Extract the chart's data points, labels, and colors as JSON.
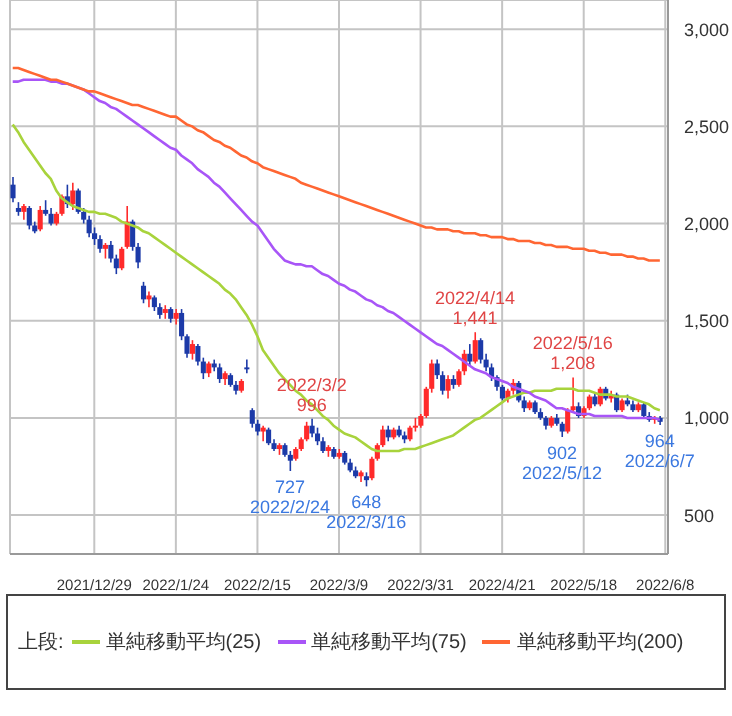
{
  "chart_data": {
    "type": "candlestick",
    "categories": [
      null,
      null,
      null,
      null,
      null,
      null,
      null,
      null,
      null,
      null,
      null,
      null,
      null,
      null,
      null,
      "2021/12/29",
      null,
      null,
      null,
      null,
      null,
      null,
      null,
      null,
      null,
      null,
      null,
      null,
      null,
      null,
      "2022/1/24",
      null,
      null,
      null,
      null,
      null,
      null,
      null,
      null,
      null,
      null,
      null,
      null,
      null,
      null,
      "2022/2/15",
      null,
      null,
      null,
      null,
      null,
      null,
      null,
      null,
      null,
      null,
      null,
      null,
      null,
      null,
      "2022/3/9",
      null,
      null,
      null,
      null,
      null,
      null,
      null,
      null,
      null,
      null,
      null,
      null,
      null,
      null,
      "2022/3/31",
      null,
      null,
      null,
      null,
      null,
      null,
      null,
      null,
      null,
      null,
      null,
      null,
      null,
      null,
      "2022/4/21",
      null,
      null,
      null,
      null,
      null,
      null,
      null,
      null,
      null,
      null,
      null,
      null,
      null,
      null,
      "2022/5/18",
      null,
      null,
      null,
      null,
      null,
      null,
      null,
      null,
      null,
      null,
      null,
      null,
      null,
      null,
      "2022/6/8"
    ],
    "ohlc": [
      [
        2200,
        2240,
        2110,
        2130
      ],
      [
        2080,
        2110,
        2040,
        2060
      ],
      [
        2060,
        2100,
        2020,
        2090
      ],
      [
        2080,
        2090,
        1970,
        1990
      ],
      [
        1990,
        2010,
        1950,
        1960
      ],
      [
        1970,
        2090,
        1960,
        2070
      ],
      [
        2070,
        2120,
        2040,
        2050
      ],
      [
        2050,
        2080,
        1990,
        2000
      ],
      [
        2000,
        2060,
        1990,
        2050
      ],
      [
        2050,
        2150,
        2040,
        2140
      ],
      [
        2140,
        2200,
        2080,
        2100
      ],
      [
        2100,
        2210,
        2070,
        2170
      ],
      [
        2170,
        2180,
        2050,
        2060
      ],
      [
        2060,
        2080,
        2000,
        2020
      ],
      [
        2020,
        2040,
        1930,
        1950
      ],
      [
        1950,
        1980,
        1890,
        1920
      ],
      [
        1920,
        1940,
        1850,
        1870
      ],
      [
        1870,
        1900,
        1820,
        1890
      ],
      [
        1890,
        1910,
        1800,
        1820
      ],
      [
        1820,
        1840,
        1740,
        1770
      ],
      [
        1770,
        1880,
        1760,
        1870
      ],
      [
        1880,
        2090,
        1870,
        2010
      ],
      [
        2010,
        2020,
        1860,
        1880
      ],
      [
        1880,
        1900,
        1770,
        1800
      ],
      [
        1680,
        1700,
        1590,
        1610
      ],
      [
        1610,
        1650,
        1570,
        1630
      ],
      [
        1620,
        1630,
        1550,
        1570
      ],
      [
        1570,
        1590,
        1510,
        1530
      ],
      [
        1540,
        1580,
        1510,
        1560
      ],
      [
        1560,
        1570,
        1490,
        1510
      ],
      [
        1510,
        1560,
        1480,
        1540
      ],
      [
        1540,
        1560,
        1400,
        1420
      ],
      [
        1420,
        1430,
        1310,
        1330
      ],
      [
        1330,
        1400,
        1300,
        1380
      ],
      [
        1370,
        1380,
        1270,
        1290
      ],
      [
        1290,
        1310,
        1200,
        1230
      ],
      [
        1230,
        1290,
        1210,
        1280
      ],
      [
        1280,
        1300,
        1240,
        1260
      ],
      [
        1260,
        1280,
        1180,
        1200
      ],
      [
        1200,
        1240,
        1170,
        1230
      ],
      [
        1220,
        1230,
        1160,
        1170
      ],
      [
        1170,
        1190,
        1120,
        1140
      ],
      [
        1140,
        1200,
        1130,
        1190
      ],
      [
        1260,
        1300,
        1230,
        1250
      ],
      [
        1040,
        1050,
        950,
        970
      ],
      [
        970,
        990,
        910,
        930
      ],
      [
        930,
        960,
        880,
        950
      ],
      [
        940,
        950,
        860,
        870
      ],
      [
        870,
        890,
        830,
        840
      ],
      [
        840,
        870,
        810,
        860
      ],
      [
        860,
        870,
        800,
        810
      ],
      [
        810,
        830,
        727,
        780
      ],
      [
        790,
        850,
        780,
        840
      ],
      [
        840,
        900,
        830,
        890
      ],
      [
        890,
        980,
        880,
        960
      ],
      [
        960,
        996,
        900,
        920
      ],
      [
        920,
        950,
        860,
        880
      ],
      [
        880,
        900,
        820,
        830
      ],
      [
        830,
        860,
        800,
        850
      ],
      [
        840,
        850,
        790,
        800
      ],
      [
        800,
        840,
        790,
        820
      ],
      [
        820,
        830,
        760,
        770
      ],
      [
        770,
        790,
        720,
        730
      ],
      [
        730,
        750,
        690,
        700
      ],
      [
        700,
        730,
        670,
        720
      ],
      [
        700,
        720,
        648,
        680
      ],
      [
        690,
        800,
        680,
        790
      ],
      [
        790,
        870,
        780,
        860
      ],
      [
        860,
        960,
        850,
        940
      ],
      [
        940,
        960,
        880,
        900
      ],
      [
        900,
        950,
        890,
        940
      ],
      [
        940,
        960,
        900,
        910
      ],
      [
        910,
        930,
        870,
        890
      ],
      [
        890,
        960,
        880,
        950
      ],
      [
        950,
        1000,
        930,
        960
      ],
      [
        960,
        1020,
        950,
        1010
      ],
      [
        1010,
        1160,
        1000,
        1150
      ],
      [
        1150,
        1300,
        1130,
        1280
      ],
      [
        1280,
        1300,
        1200,
        1220
      ],
      [
        1220,
        1240,
        1120,
        1140
      ],
      [
        1140,
        1220,
        1100,
        1200
      ],
      [
        1200,
        1220,
        1150,
        1170
      ],
      [
        1170,
        1250,
        1160,
        1240
      ],
      [
        1240,
        1350,
        1220,
        1330
      ],
      [
        1330,
        1380,
        1270,
        1290
      ],
      [
        1290,
        1441,
        1280,
        1400
      ],
      [
        1400,
        1410,
        1280,
        1300
      ],
      [
        1300,
        1330,
        1240,
        1260
      ],
      [
        1260,
        1280,
        1190,
        1210
      ],
      [
        1210,
        1220,
        1140,
        1160
      ],
      [
        1160,
        1170,
        1090,
        1100
      ],
      [
        1100,
        1150,
        1080,
        1140
      ],
      [
        1140,
        1200,
        1120,
        1180
      ],
      [
        1180,
        1190,
        1080,
        1090
      ],
      [
        1090,
        1110,
        1030,
        1050
      ],
      [
        1050,
        1090,
        1040,
        1080
      ],
      [
        1080,
        1090,
        1020,
        1030
      ],
      [
        1030,
        1050,
        990,
        1000
      ],
      [
        1000,
        1010,
        940,
        960
      ],
      [
        960,
        1010,
        950,
        1000
      ],
      [
        1000,
        1020,
        960,
        970
      ],
      [
        970,
        980,
        902,
        930
      ],
      [
        930,
        1050,
        920,
        1040
      ],
      [
        1040,
        1208,
        1030,
        1060
      ],
      [
        1060,
        1080,
        1000,
        1010
      ],
      [
        1010,
        1060,
        1000,
        1050
      ],
      [
        1050,
        1120,
        1040,
        1110
      ],
      [
        1110,
        1130,
        1060,
        1070
      ],
      [
        1070,
        1160,
        1060,
        1150
      ],
      [
        1150,
        1160,
        1090,
        1100
      ],
      [
        1100,
        1140,
        1080,
        1120
      ],
      [
        1120,
        1130,
        1030,
        1040
      ],
      [
        1040,
        1100,
        1030,
        1090
      ],
      [
        1090,
        1120,
        1060,
        1070
      ],
      [
        1070,
        1090,
        1030,
        1040
      ],
      [
        1040,
        1080,
        1030,
        1070
      ],
      [
        1070,
        1080,
        1000,
        1010
      ],
      [
        1010,
        1030,
        980,
        990
      ],
      [
        990,
        1010,
        970,
        1000
      ],
      [
        1000,
        1010,
        964,
        980
      ],
      null
    ],
    "series": [
      {
        "name": "単純移動平均(25)",
        "color": "#a8d33c",
        "type": "line",
        "values": [
          2510,
          2470,
          2420,
          2380,
          2340,
          2300,
          2260,
          2230,
          2170,
          2130,
          2110,
          2090,
          2080,
          2070,
          2060,
          2060,
          2050,
          2050,
          2040,
          2030,
          2010,
          2000,
          1990,
          1980,
          1960,
          1950,
          1930,
          1910,
          1890,
          1870,
          1850,
          1830,
          1810,
          1790,
          1770,
          1750,
          1730,
          1710,
          1690,
          1660,
          1640,
          1610,
          1570,
          1530,
          1480,
          1420,
          1350,
          1310,
          1270,
          1230,
          1200,
          1170,
          1140,
          1120,
          1090,
          1070,
          1040,
          1010,
          990,
          960,
          940,
          920,
          910,
          900,
          880,
          860,
          840,
          830,
          830,
          830,
          830,
          830,
          840,
          840,
          840,
          850,
          860,
          870,
          880,
          890,
          900,
          910,
          930,
          950,
          970,
          990,
          1000,
          1020,
          1040,
          1060,
          1080,
          1100,
          1110,
          1120,
          1130,
          1130,
          1140,
          1140,
          1140,
          1140,
          1150,
          1150,
          1150,
          1150,
          1140,
          1140,
          1140,
          1130,
          1120,
          1120,
          1120,
          1110,
          1110,
          1110,
          1100,
          1090,
          1080,
          1070,
          1050,
          1040,
          null
        ]
      },
      {
        "name": "単純移動平均(75)",
        "color": "#a855f7",
        "type": "line",
        "values": [
          2730,
          2730,
          2740,
          2740,
          2740,
          2740,
          2740,
          2730,
          2730,
          2720,
          2720,
          2710,
          2700,
          2690,
          2670,
          2650,
          2630,
          2620,
          2600,
          2590,
          2570,
          2550,
          2530,
          2510,
          2490,
          2470,
          2450,
          2430,
          2410,
          2390,
          2380,
          2350,
          2330,
          2310,
          2280,
          2260,
          2240,
          2210,
          2190,
          2160,
          2130,
          2100,
          2070,
          2040,
          2010,
          1990,
          1950,
          1910,
          1870,
          1840,
          1810,
          1800,
          1790,
          1790,
          1780,
          1780,
          1760,
          1740,
          1730,
          1710,
          1690,
          1680,
          1660,
          1650,
          1630,
          1610,
          1600,
          1580,
          1570,
          1550,
          1540,
          1520,
          1500,
          1480,
          1460,
          1440,
          1420,
          1400,
          1380,
          1370,
          1350,
          1330,
          1310,
          1290,
          1270,
          1250,
          1240,
          1230,
          1210,
          1200,
          1190,
          1180,
          1160,
          1150,
          1140,
          1130,
          1110,
          1100,
          1090,
          1070,
          1050,
          1050,
          1040,
          1030,
          1020,
          1020,
          1020,
          1010,
          1010,
          1010,
          1010,
          1010,
          1010,
          1000,
          1000,
          1000,
          1000,
          1000,
          1000,
          990,
          null
        ]
      },
      {
        "name": "単純移動平均(200)",
        "color": "#ff6633",
        "type": "line",
        "values": [
          2800,
          2800,
          2790,
          2780,
          2770,
          2760,
          2750,
          2740,
          2740,
          2730,
          2720,
          2710,
          2700,
          2690,
          2680,
          2680,
          2670,
          2660,
          2650,
          2640,
          2630,
          2620,
          2610,
          2610,
          2600,
          2590,
          2580,
          2570,
          2560,
          2550,
          2550,
          2530,
          2510,
          2500,
          2480,
          2470,
          2450,
          2430,
          2420,
          2400,
          2390,
          2370,
          2350,
          2340,
          2320,
          2310,
          2290,
          2280,
          2270,
          2260,
          2250,
          2240,
          2230,
          2210,
          2200,
          2190,
          2180,
          2170,
          2160,
          2150,
          2140,
          2130,
          2120,
          2110,
          2100,
          2090,
          2080,
          2070,
          2060,
          2050,
          2040,
          2030,
          2020,
          2010,
          2000,
          1990,
          1980,
          1980,
          1970,
          1970,
          1970,
          1960,
          1960,
          1950,
          1950,
          1950,
          1940,
          1940,
          1930,
          1930,
          1930,
          1920,
          1920,
          1910,
          1910,
          1910,
          1900,
          1900,
          1890,
          1890,
          1880,
          1880,
          1880,
          1870,
          1870,
          1870,
          1860,
          1860,
          1850,
          1850,
          1840,
          1840,
          1840,
          1830,
          1830,
          1820,
          1820,
          1810,
          1810,
          1810,
          null
        ]
      }
    ],
    "ylim": [
      300,
      3150
    ],
    "yticks": [
      500,
      {
        "value": 1000,
        "label": "1,000"
      },
      {
        "value": 1500,
        "label": "1,500"
      },
      {
        "value": 2000,
        "label": "2,000"
      },
      {
        "value": 2500,
        "label": "2,500"
      },
      {
        "value": 3000,
        "label": "3,000"
      }
    ],
    "grid": true,
    "legend": "bottom",
    "legend_title": "上段:",
    "annotations": [
      {
        "text": "727\n2022/2/24",
        "y": 727
      },
      {
        "text": "2022/3/2\n996",
        "y": 996
      },
      {
        "text": "648\n2022/3/16",
        "y": 648
      },
      {
        "text": "2022/4/14\n1,441",
        "y": 1441
      },
      {
        "text": "902\n2022/5/12",
        "y": 902
      },
      {
        "text": "2022/5/16\n1,208",
        "y": 1208
      },
      {
        "text": "964\n2022/6/7",
        "y": 964
      }
    ]
  }
}
